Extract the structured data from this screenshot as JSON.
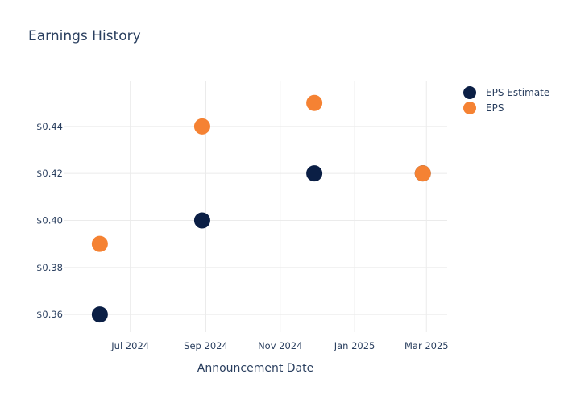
{
  "chart_data": {
    "type": "scatter",
    "title": "Earnings History",
    "xlabel": "Announcement Date",
    "ylabel": "",
    "x_ticks": [
      "Jul 2024",
      "Sep 2024",
      "Nov 2024",
      "Jan 2025",
      "Mar 2025"
    ],
    "x_tick_dates": [
      "2024-07-01",
      "2024-09-01",
      "2024-11-01",
      "2025-01-01",
      "2025-03-01"
    ],
    "y_ticks": [
      "$0.36",
      "$0.38",
      "$0.40",
      "$0.42",
      "$0.44"
    ],
    "y_tick_values": [
      0.36,
      0.38,
      0.4,
      0.42,
      0.44
    ],
    "xlim": [
      "2024-05-08",
      "2025-03-18"
    ],
    "ylim": [
      0.3525,
      0.4595
    ],
    "grid": true,
    "legend_position": "top-right",
    "series": [
      {
        "name": "EPS Estimate",
        "color": "#0b1f45",
        "points": [
          {
            "x": "2024-06-06",
            "y": 0.36
          },
          {
            "x": "2024-08-29",
            "y": 0.4
          },
          {
            "x": "2024-11-29",
            "y": 0.42
          },
          {
            "x": "2025-02-26",
            "y": 0.42
          }
        ]
      },
      {
        "name": "EPS",
        "color": "#f58233",
        "points": [
          {
            "x": "2024-06-06",
            "y": 0.39
          },
          {
            "x": "2024-08-29",
            "y": 0.44
          },
          {
            "x": "2024-11-29",
            "y": 0.45
          },
          {
            "x": "2025-02-26",
            "y": 0.42
          }
        ]
      }
    ]
  }
}
